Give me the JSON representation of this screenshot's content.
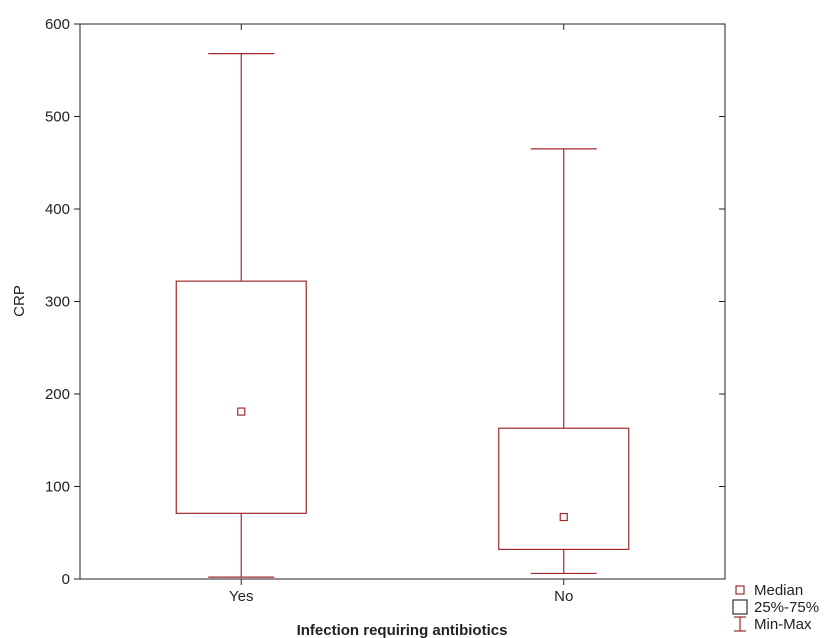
{
  "chart_data": {
    "type": "box",
    "title": "",
    "xlabel": "Infection requiring antibiotics",
    "ylabel": "CRP",
    "ylim": [
      0,
      600
    ],
    "yticks": [
      0,
      100,
      200,
      300,
      400,
      500,
      600
    ],
    "ytick_labels": [
      "0",
      "100",
      "200",
      "300",
      "400",
      "500",
      "600"
    ],
    "categories": [
      "Yes",
      "No"
    ],
    "boxes": [
      {
        "category": "Yes",
        "min": 2,
        "q1": 71,
        "median": 181,
        "q3": 322,
        "max": 568
      },
      {
        "category": "No",
        "min": 6,
        "q1": 32,
        "median": 67,
        "q3": 163,
        "max": 465
      }
    ],
    "grid": false,
    "legend_position": "bottom-right",
    "legend": [
      {
        "key": "median",
        "label": "Median"
      },
      {
        "key": "box",
        "label": "25%-75%"
      },
      {
        "key": "whisker",
        "label": "Min-Max"
      }
    ],
    "colors": {
      "series": "#a0282a",
      "axis": "#222222"
    }
  }
}
